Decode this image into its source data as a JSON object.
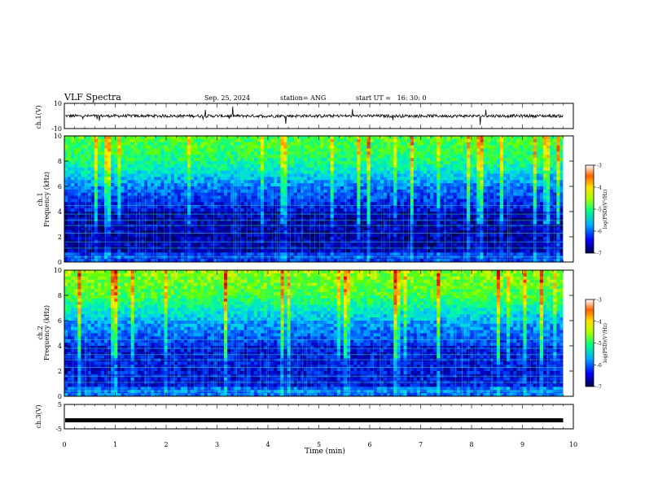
{
  "header": {
    "title": "VLF Spectra",
    "date": "Sep. 25, 2024",
    "station": "station= ANG",
    "start_time": "start UT =   16: 30: 0"
  },
  "chart_data": [
    {
      "type": "line",
      "panel": "ch1-waveform",
      "ylabel": "ch.1(V)",
      "ylim": [
        -10,
        10
      ],
      "y_tick_labels": [
        "10",
        "-10"
      ],
      "xlim": [
        0,
        10
      ],
      "baseline": 0,
      "color": "#000000"
    },
    {
      "type": "heatmap",
      "panel": "ch1-spectrogram",
      "ylabel_top": "ch.1",
      "ylabel": "Frequency (kHz)",
      "ylim": [
        0,
        10
      ],
      "y_tick_labels": [
        "0",
        "2",
        "4",
        "6",
        "8",
        "10"
      ],
      "xlim": [
        0,
        10
      ],
      "data_end_min": 9.8,
      "colorbar": {
        "label": "log(PSD)(V²/Hz)",
        "range": [
          -7,
          -3
        ],
        "tick_labels": [
          "-3",
          "-4",
          "-5",
          "-6",
          "-7"
        ]
      }
    },
    {
      "type": "heatmap",
      "panel": "ch2-spectrogram",
      "ylabel_top": "ch.2",
      "ylabel": "Frequency (kHz)",
      "ylim": [
        0,
        10
      ],
      "y_tick_labels": [
        "0",
        "2",
        "4",
        "6",
        "8",
        "10"
      ],
      "xlim": [
        0,
        10
      ],
      "data_end_min": 9.8,
      "colorbar": {
        "label": "log(PSD)(V²/Hz)",
        "range": [
          -7,
          -3
        ],
        "tick_labels": [
          "-3",
          "-4",
          "-5",
          "-6",
          "-7"
        ]
      }
    },
    {
      "type": "line",
      "panel": "ch3-waveform",
      "ylabel": "ch.3(V)",
      "ylim": [
        -5,
        5
      ],
      "y_tick_labels": [
        "5",
        "-5"
      ],
      "xlim": [
        0,
        10
      ],
      "baseline": -1.5,
      "color": "#000000"
    }
  ],
  "x_axis": {
    "label": "Time (min)",
    "tick_labels": [
      "0",
      "1",
      "2",
      "3",
      "4",
      "5",
      "6",
      "7",
      "8",
      "9",
      "10"
    ]
  },
  "colormap": [
    "#00004a",
    "#0000c8",
    "#0050ff",
    "#00c8ff",
    "#00ff96",
    "#64ff00",
    "#fff000",
    "#ff8c00",
    "#e60000"
  ]
}
